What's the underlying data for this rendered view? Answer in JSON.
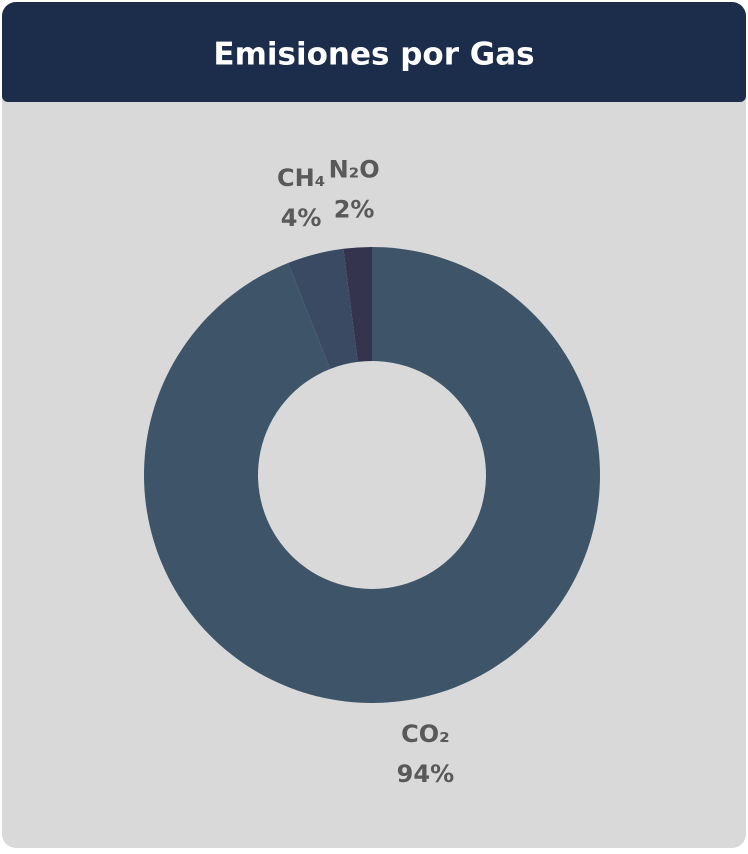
{
  "chart_data": {
    "type": "donut",
    "title": "Emisiones por Gas",
    "categories": [
      "CO₂",
      "CH₄",
      "N₂O"
    ],
    "values": [
      94,
      4,
      2
    ],
    "value_labels": [
      "94%",
      "4%",
      "2%"
    ],
    "colors": [
      "#3e5569",
      "#3b4a63",
      "#34344e"
    ]
  }
}
